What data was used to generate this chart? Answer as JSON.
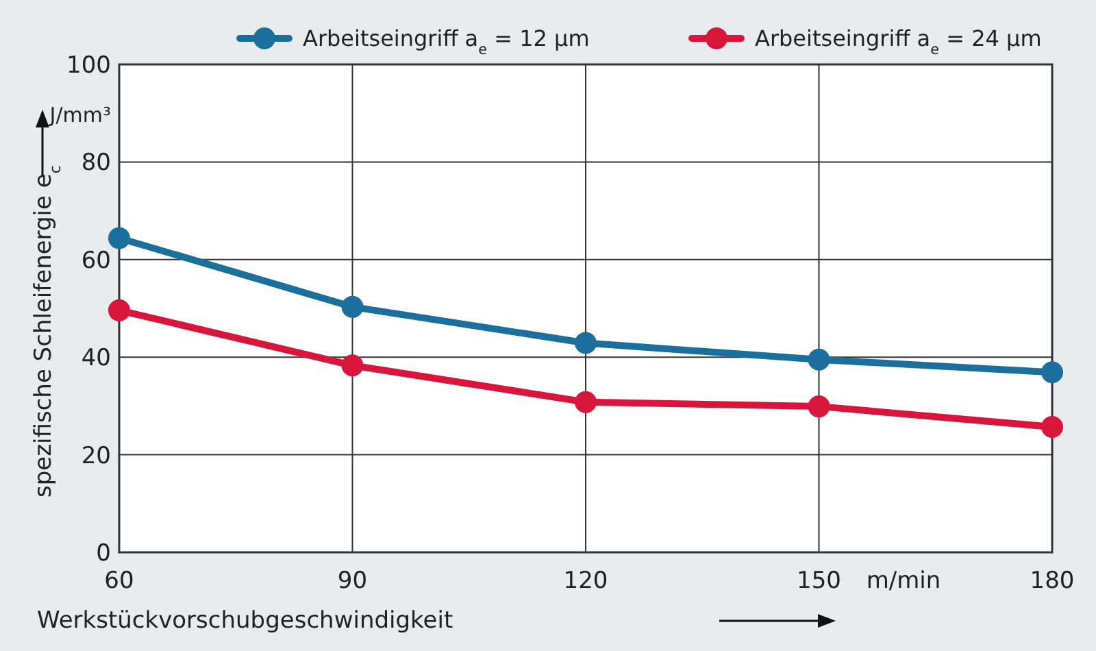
{
  "chart_data": {
    "type": "line",
    "xlabel": "Werkstückvorschubgeschwindigkeit",
    "ylabel": "spezifische Schleifenergie e$_{c}$",
    "x": [
      60,
      90,
      120,
      150,
      180
    ],
    "series": [
      {
        "name": "Arbeitseingriff a$_{e}$ = 12 µm",
        "color": "#1b6f9c",
        "values": [
          64.4,
          50.3,
          42.9,
          39.5,
          36.9
        ]
      },
      {
        "name": "Arbeitseingriff a$_{e}$ = 24 µm",
        "color": "#d8163c",
        "values": [
          49.6,
          38.3,
          30.8,
          29.9,
          25.7
        ]
      }
    ],
    "xlim": [
      60,
      180
    ],
    "xticks": [
      60,
      90,
      120,
      150,
      180
    ],
    "ylim": [
      0,
      100
    ],
    "yticks": [
      0,
      20,
      40,
      60,
      80,
      100
    ],
    "annotations": [
      "J/mm³",
      "m/min"
    ],
    "grid": true,
    "legend": "top",
    "marker": "circle",
    "line_style": "solid"
  }
}
